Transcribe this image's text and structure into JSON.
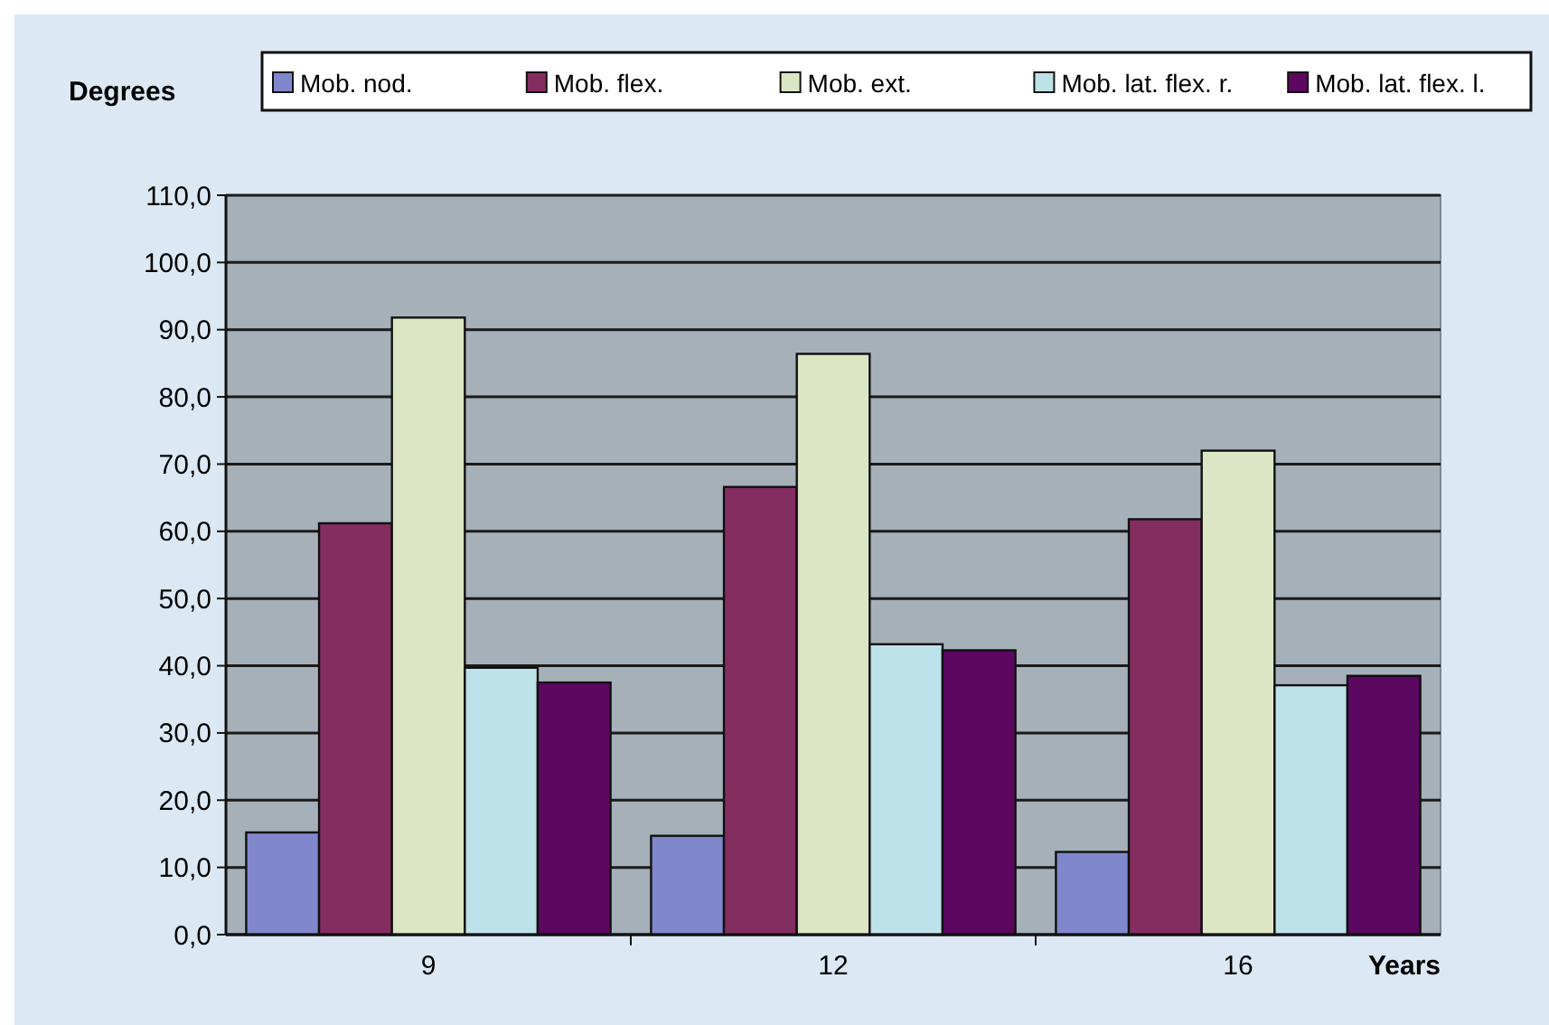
{
  "chart_data": {
    "type": "bar",
    "ylabel": "Degrees",
    "xlabel": "Years",
    "categories": [
      "9",
      "12",
      "16"
    ],
    "series": [
      {
        "name": "Mob. nod.",
        "color": "#8087cc",
        "values": [
          15.2,
          14.7,
          12.3
        ]
      },
      {
        "name": "Mob. flex.",
        "color": "#842d60",
        "values": [
          61.2,
          66.6,
          61.8
        ]
      },
      {
        "name": "Mob. ext.",
        "color": "#dce6c5",
        "values": [
          91.8,
          86.4,
          72.0
        ]
      },
      {
        "name": "Mob. lat. flex. r.",
        "color": "#bde2ea",
        "values": [
          39.7,
          43.2,
          37.1
        ]
      },
      {
        "name": "Mob. lat. flex. l.",
        "color": "#5c0760",
        "values": [
          37.5,
          42.3,
          38.5
        ]
      }
    ],
    "ylim": [
      0,
      110
    ],
    "yticks": [
      {
        "value": 0,
        "label": "0,0"
      },
      {
        "value": 10,
        "label": "10,0"
      },
      {
        "value": 20,
        "label": "20,0"
      },
      {
        "value": 30,
        "label": "30,0"
      },
      {
        "value": 40,
        "label": "40,0"
      },
      {
        "value": 50,
        "label": "50,0"
      },
      {
        "value": 60,
        "label": "60,0"
      },
      {
        "value": 70,
        "label": "70,0"
      },
      {
        "value": 80,
        "label": "80,0"
      },
      {
        "value": 90,
        "label": "90,0"
      },
      {
        "value": 100,
        "label": "100,0"
      },
      {
        "value": 110,
        "label": "110,0"
      }
    ],
    "grid": "y",
    "legend": "top"
  }
}
